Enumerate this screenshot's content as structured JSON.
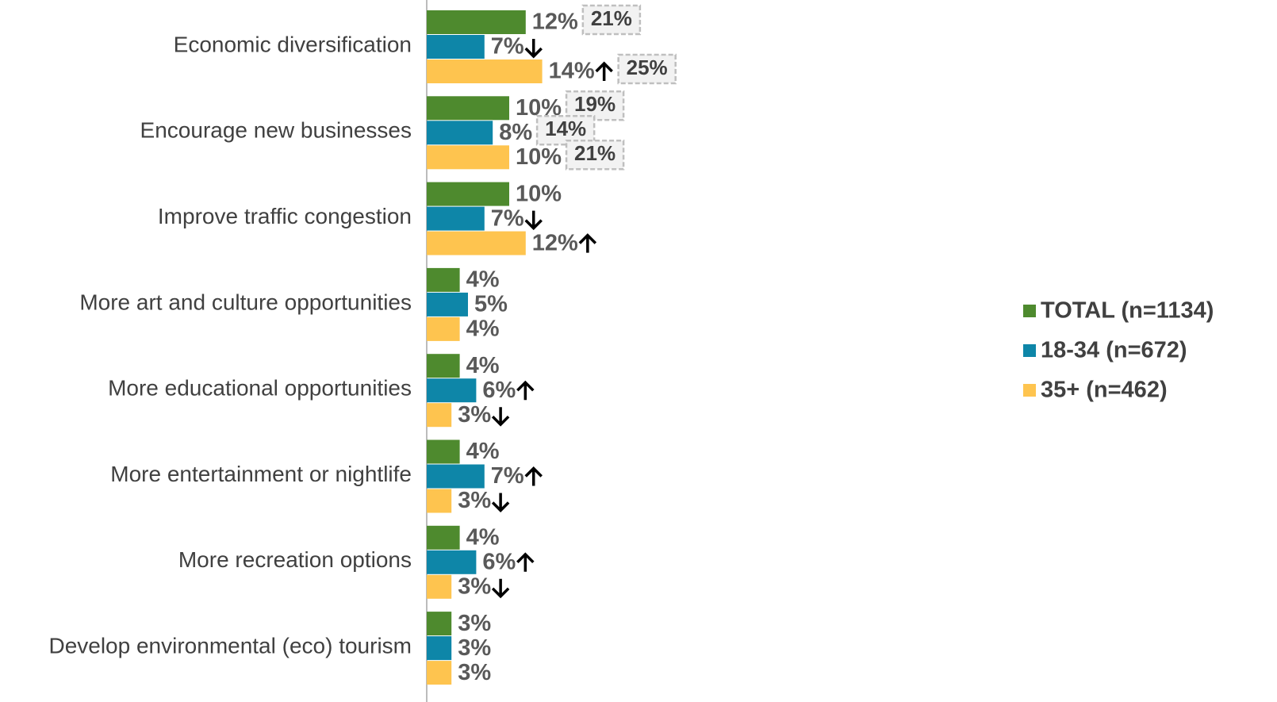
{
  "chart_data": {
    "type": "hbar",
    "categories": [
      "Economic diversification",
      "Encourage new businesses",
      "Improve traffic congestion",
      "More art and culture opportunities",
      "More educational opportunities",
      "More entertainment or nightlife",
      "More recreation options",
      "Develop environmental (eco) tourism"
    ],
    "xlim": [
      0,
      30
    ],
    "series": [
      {
        "name": "TOTAL (n=1134)",
        "color": "#4e8a2e",
        "values": [
          12,
          10,
          10,
          4,
          4,
          4,
          4,
          3
        ],
        "value_labels": [
          "12%",
          "10%",
          "10%",
          "4%",
          "4%",
          "4%",
          "4%",
          "3%"
        ],
        "significance": [
          null,
          null,
          null,
          null,
          null,
          null,
          null,
          null
        ],
        "box_values": [
          21,
          19,
          null,
          null,
          null,
          null,
          null,
          null
        ],
        "box_labels": [
          "21%",
          "19%",
          null,
          null,
          null,
          null,
          null,
          null
        ]
      },
      {
        "name": "18-34 (n=672)",
        "color": "#0e86a8",
        "values": [
          7,
          8,
          7,
          5,
          6,
          7,
          6,
          3
        ],
        "value_labels": [
          "7%",
          "8%",
          "7%",
          "5%",
          "6%",
          "7%",
          "6%",
          "3%"
        ],
        "significance": [
          "down",
          null,
          "down",
          null,
          "up",
          "up",
          "up",
          null
        ],
        "box_values": [
          null,
          14,
          null,
          null,
          null,
          null,
          null,
          null
        ],
        "box_labels": [
          null,
          "14%",
          null,
          null,
          null,
          null,
          null,
          null
        ]
      },
      {
        "name": "35+ (n=462)",
        "color": "#fec44f",
        "values": [
          14,
          10,
          12,
          4,
          3,
          3,
          3,
          3
        ],
        "value_labels": [
          "14%",
          "10%",
          "12%",
          "4%",
          "3%",
          "3%",
          "3%",
          "3%"
        ],
        "significance": [
          "up",
          null,
          "up",
          null,
          "down",
          "down",
          "down",
          null
        ],
        "box_values": [
          25,
          21,
          null,
          null,
          null,
          null,
          null,
          null
        ],
        "box_labels": [
          "25%",
          "21%",
          null,
          null,
          null,
          null,
          null,
          null
        ]
      }
    ],
    "legend": "right"
  }
}
